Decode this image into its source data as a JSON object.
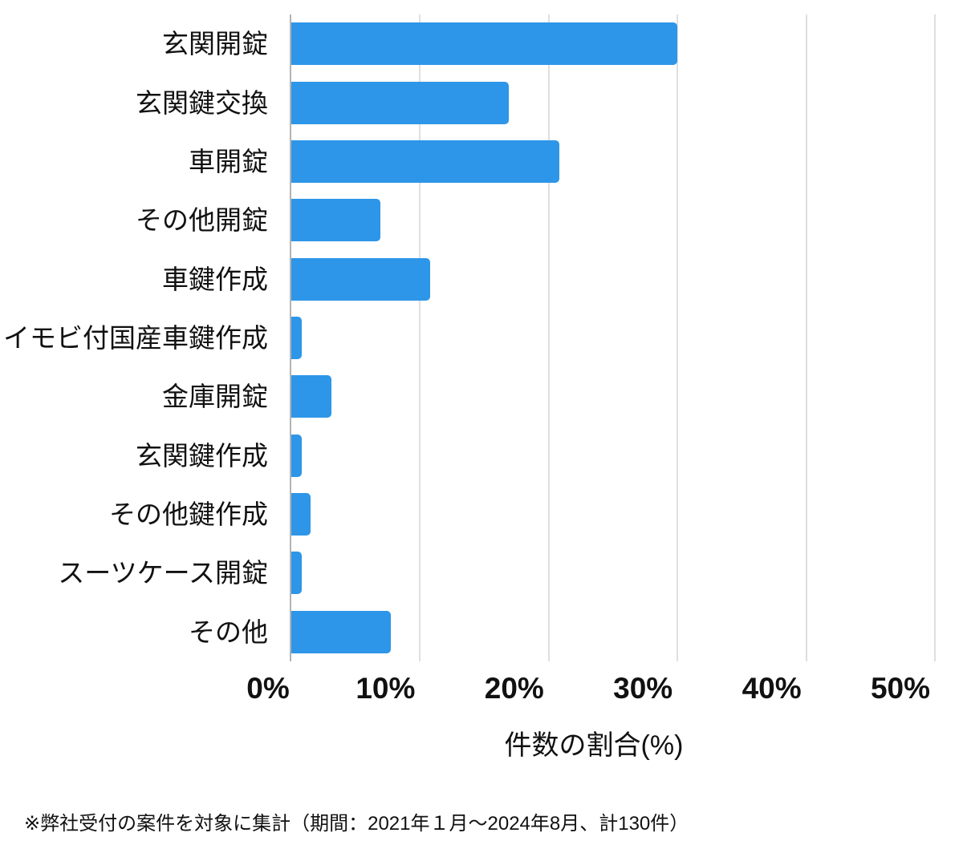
{
  "chart_data": {
    "type": "bar",
    "orientation": "horizontal",
    "title": "",
    "categories": [
      "玄関開錠",
      "玄関鍵交換",
      "車開錠",
      "その他開錠",
      "車鍵作成",
      "イモビ付国産車鍵作成",
      "金庫開錠",
      "玄関鍵作成",
      "その他鍵作成",
      "スーツケース開錠",
      "その他"
    ],
    "values": [
      30.0,
      16.9,
      20.8,
      6.9,
      10.8,
      0.8,
      3.1,
      0.8,
      1.5,
      0.8,
      7.7
    ],
    "xlabel": "件数の割合(%)",
    "ylabel": "",
    "xlim": [
      0,
      50
    ],
    "x_ticks": [
      "0%",
      "10%",
      "20%",
      "30%",
      "40%",
      "50%"
    ],
    "x_tick_values": [
      0,
      10,
      20,
      30,
      40,
      50
    ],
    "grid": "vertical-only",
    "legend": "none"
  },
  "footnote": "※弊社受付の案件を対象に集計（期間：2021年１月～2024年8月、計130件）",
  "colors": {
    "bar": "#2D96E8",
    "gridline": "#DFDFDF",
    "axis_line": "#B3B3B3",
    "text": "#111111",
    "background": "#FFFFFF"
  }
}
